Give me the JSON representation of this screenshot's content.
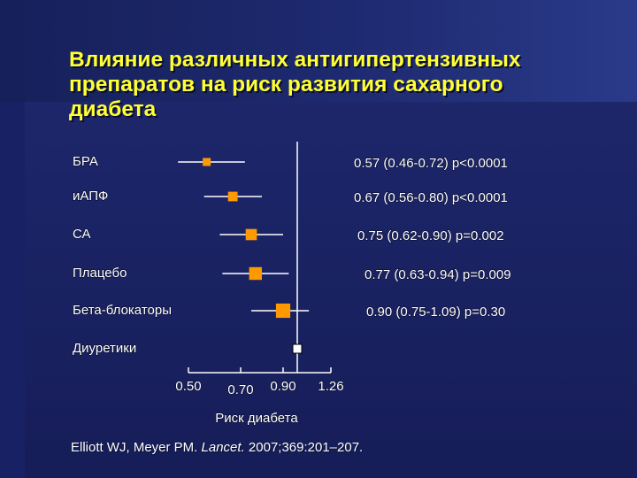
{
  "slide": {
    "title_lines": [
      "Влияние различных антигипертензивных",
      "препаратов на риск развития сахарного",
      "диабета"
    ],
    "citation": {
      "authors": "Elliott WJ, Meyer PM.",
      "journal": "Lancet.",
      "details": "2007;369:201–207."
    }
  },
  "colors": {
    "background": "#1b2466",
    "title": "#ffff33",
    "text": "#ffffff",
    "marker": "#ff9900",
    "reference_marker": "#ffffff",
    "ci_line": "#ffffff"
  },
  "chart_data": {
    "type": "forest",
    "xlabel": "Риск диабета",
    "x_ticks": [
      0.5,
      0.7,
      0.9,
      1.26
    ],
    "x_tick_labels": [
      "0.50",
      "0.70",
      "0.90",
      "1.26"
    ],
    "reference_value": 1.0,
    "rows": [
      {
        "label": "БРА",
        "estimate": 0.57,
        "ci_low": 0.46,
        "ci_high": 0.72,
        "annotation": "0.57 (0.46-0.72) p<0.0001"
      },
      {
        "label": "иАПФ",
        "estimate": 0.67,
        "ci_low": 0.56,
        "ci_high": 0.8,
        "annotation": "0.67 (0.56-0.80) p<0.0001"
      },
      {
        "label": "СА",
        "estimate": 0.75,
        "ci_low": 0.62,
        "ci_high": 0.9,
        "annotation": "0.75 (0.62-0.90) p=0.002"
      },
      {
        "label": "Плацебо",
        "estimate": 0.77,
        "ci_low": 0.63,
        "ci_high": 0.94,
        "annotation": "0.77 (0.63-0.94) p=0.009"
      },
      {
        "label": "Бета-блокаторы",
        "estimate": 0.9,
        "ci_low": 0.75,
        "ci_high": 1.09,
        "annotation": "0.90 (0.75-1.09) p=0.30"
      },
      {
        "label": "Диуретики",
        "estimate": 1.0,
        "reference": true,
        "annotation": ""
      }
    ]
  }
}
